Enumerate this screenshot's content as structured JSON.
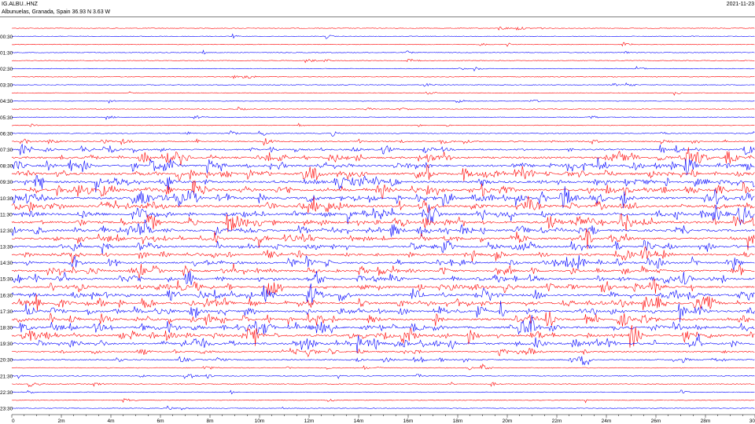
{
  "header": {
    "station": "IG.ALBU..HNZ",
    "location": "Albunuelas, Granada, Spain  36.93 N 3.63 W",
    "date": "2021-11-23"
  },
  "chart_data": {
    "type": "line",
    "title": "",
    "xlabel": "",
    "ylabel": "",
    "xlim": [
      0,
      30
    ],
    "x_ticks": [
      {
        "v": 0,
        "label": "0"
      },
      {
        "v": 2,
        "label": "2m"
      },
      {
        "v": 4,
        "label": "4m"
      },
      {
        "v": 6,
        "label": "6m"
      },
      {
        "v": 8,
        "label": "8m"
      },
      {
        "v": 10,
        "label": "10m"
      },
      {
        "v": 12,
        "label": "12m"
      },
      {
        "v": 14,
        "label": "14m"
      },
      {
        "v": 16,
        "label": "16m"
      },
      {
        "v": 18,
        "label": "18m"
      },
      {
        "v": 20,
        "label": "20m"
      },
      {
        "v": 22,
        "label": "22m"
      },
      {
        "v": 24,
        "label": "24m"
      },
      {
        "v": 26,
        "label": "26m"
      },
      {
        "v": 28,
        "label": "28m"
      },
      {
        "v": 30,
        "label": "30"
      }
    ],
    "y_labels": [
      "00:30",
      "01:30",
      "02:30",
      "03:30",
      "04:30",
      "05:30",
      "06:30",
      "07:30",
      "08:30",
      "09:30",
      "10:30",
      "11:30",
      "12:30",
      "13:30",
      "14:30",
      "15:30",
      "16:30",
      "17:30",
      "18:30",
      "19:30",
      "20:30",
      "21:30",
      "22:30",
      "23:30"
    ],
    "trace_count": 48,
    "trace_colors": [
      "#ff0000",
      "#0000ff"
    ],
    "activity_by_trace": [
      0.05,
      0.05,
      0.05,
      0.05,
      0.05,
      0.05,
      0.05,
      0.05,
      0.05,
      0.05,
      0.05,
      0.05,
      0.08,
      0.15,
      0.3,
      0.5,
      0.75,
      0.85,
      0.9,
      0.85,
      0.95,
      0.95,
      0.9,
      0.95,
      0.9,
      0.85,
      0.75,
      0.7,
      0.7,
      0.7,
      0.7,
      0.75,
      0.7,
      0.85,
      0.85,
      0.75,
      0.8,
      0.85,
      0.85,
      0.8,
      0.4,
      0.35,
      0.15,
      0.15,
      0.08,
      0.06,
      0.05,
      0.05
    ],
    "grid": false
  }
}
